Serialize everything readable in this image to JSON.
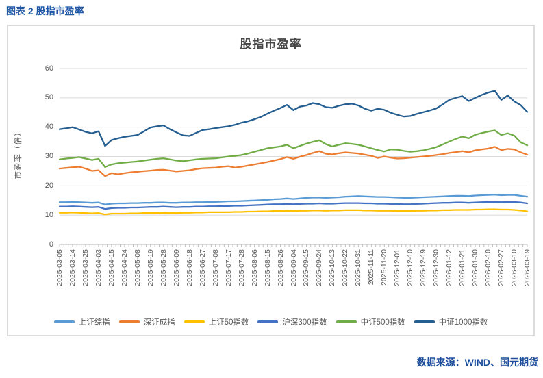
{
  "header": {
    "title": "图表 2 股指市盈率"
  },
  "source": {
    "text": "数据来源：WIND、国元期货"
  },
  "chart_data": {
    "type": "line",
    "title": "股指市盈率",
    "ylabel": "市盈率（倍）",
    "ylim": [
      0,
      60
    ],
    "ytick_step": 10,
    "grid": true,
    "legend_position": "bottom",
    "points_per_label": 2,
    "x_labels": [
      "2025-03-05",
      "2025-03-14",
      "2025-03-25",
      "2025-04-03",
      "2025-04-15",
      "2025-04-24",
      "2025-05-08",
      "2025-05-19",
      "2025-05-28",
      "2025-06-09",
      "2025-06-18",
      "2025-06-27",
      "2025-07-08",
      "2025-07-17",
      "2025-07-28",
      "2025-08-06",
      "2025-08-15",
      "2025-08-26",
      "2025-09-04",
      "2025-09-15",
      "2025-09-24",
      "2025-10-13",
      "2025-10-22",
      "2025-10-31",
      "2025-11-11",
      "2025-11-20",
      "2025-12-01",
      "2025-12-10",
      "2025-12-19",
      "2025-12-30",
      "2026-01-12",
      "2026-01-21",
      "2026-01-30",
      "2026-02-10",
      "2026-02-27",
      "2026-03-10",
      "2026-03-19"
    ],
    "series": [
      {
        "name": "上证综指",
        "color": "#5B9BD5",
        "values": [
          14.4,
          14.4,
          14.5,
          14.4,
          14.3,
          14.2,
          14.3,
          13.6,
          13.9,
          14.0,
          14.0,
          14.1,
          14.1,
          14.2,
          14.2,
          14.3,
          14.3,
          14.2,
          14.2,
          14.3,
          14.3,
          14.4,
          14.4,
          14.5,
          14.5,
          14.6,
          14.7,
          14.7,
          14.8,
          14.9,
          15.0,
          15.1,
          15.2,
          15.4,
          15.5,
          15.7,
          15.5,
          15.7,
          15.9,
          16.0,
          16.0,
          15.9,
          16.0,
          16.1,
          16.3,
          16.4,
          16.5,
          16.4,
          16.3,
          16.2,
          16.2,
          16.1,
          16.0,
          15.9,
          15.9,
          16.0,
          16.1,
          16.2,
          16.3,
          16.4,
          16.5,
          16.6,
          16.6,
          16.5,
          16.7,
          16.8,
          16.9,
          17.0,
          16.8,
          16.9,
          16.9,
          16.6,
          16.3
        ]
      },
      {
        "name": "深证成指",
        "color": "#ED7D31",
        "values": [
          25.9,
          26.1,
          26.3,
          26.5,
          25.9,
          25.1,
          25.3,
          23.3,
          24.3,
          23.9,
          24.3,
          24.6,
          24.8,
          25.0,
          25.2,
          25.4,
          25.5,
          25.2,
          24.9,
          25.1,
          25.3,
          25.7,
          26.0,
          26.1,
          26.2,
          26.5,
          26.7,
          26.2,
          26.5,
          26.9,
          27.3,
          27.7,
          28.1,
          28.6,
          29.1,
          29.8,
          29.2,
          29.9,
          30.5,
          31.2,
          31.8,
          30.9,
          30.7,
          31.1,
          31.4,
          31.2,
          31.0,
          30.6,
          30.2,
          29.5,
          30.0,
          29.6,
          29.3,
          29.4,
          29.6,
          29.8,
          30.0,
          30.2,
          30.5,
          30.8,
          31.2,
          31.5,
          31.8,
          31.4,
          32.1,
          32.4,
          32.7,
          33.3,
          32.2,
          32.6,
          32.4,
          31.4,
          30.6
        ]
      },
      {
        "name": "上证50指数",
        "color": "#FFC000",
        "values": [
          10.8,
          10.8,
          10.9,
          10.8,
          10.7,
          10.6,
          10.7,
          10.2,
          10.5,
          10.5,
          10.5,
          10.6,
          10.6,
          10.7,
          10.7,
          10.7,
          10.8,
          10.7,
          10.7,
          10.8,
          10.8,
          10.9,
          10.9,
          11.0,
          11.0,
          11.0,
          11.0,
          11.1,
          11.1,
          11.2,
          11.2,
          11.3,
          11.3,
          11.4,
          11.4,
          11.5,
          11.4,
          11.5,
          11.5,
          11.6,
          11.6,
          11.5,
          11.6,
          11.6,
          11.7,
          11.7,
          11.7,
          11.6,
          11.6,
          11.5,
          11.5,
          11.5,
          11.4,
          11.4,
          11.4,
          11.5,
          11.5,
          11.6,
          11.6,
          11.7,
          11.7,
          11.8,
          11.8,
          11.8,
          11.9,
          11.9,
          12.0,
          12.0,
          11.9,
          11.9,
          11.8,
          11.6,
          11.3
        ]
      },
      {
        "name": "沪深300指数",
        "color": "#4472C4",
        "values": [
          12.9,
          12.9,
          13.0,
          12.9,
          12.8,
          12.7,
          12.8,
          12.1,
          12.4,
          12.5,
          12.5,
          12.6,
          12.6,
          12.7,
          12.8,
          12.8,
          12.9,
          12.8,
          12.7,
          12.8,
          12.8,
          12.9,
          12.9,
          13.0,
          13.0,
          13.1,
          13.1,
          13.2,
          13.2,
          13.3,
          13.4,
          13.5,
          13.6,
          13.7,
          13.7,
          13.8,
          13.7,
          13.8,
          13.9,
          13.9,
          14.0,
          13.9,
          13.9,
          14.0,
          14.1,
          14.1,
          14.1,
          14.0,
          14.0,
          13.9,
          13.9,
          13.8,
          13.8,
          13.7,
          13.7,
          13.8,
          13.9,
          14.0,
          14.1,
          14.2,
          14.2,
          14.3,
          14.3,
          14.2,
          14.3,
          14.4,
          14.5,
          14.5,
          14.4,
          14.5,
          14.5,
          14.3,
          14.0
        ]
      },
      {
        "name": "中证500指数",
        "color": "#70AD47",
        "values": [
          29.0,
          29.3,
          29.5,
          29.8,
          29.3,
          28.8,
          29.2,
          26.4,
          27.3,
          27.7,
          27.9,
          28.1,
          28.3,
          28.6,
          28.9,
          29.2,
          29.4,
          29.0,
          28.6,
          28.4,
          28.7,
          29.0,
          29.2,
          29.3,
          29.4,
          29.7,
          30.0,
          30.2,
          30.5,
          31.0,
          31.6,
          32.2,
          32.8,
          33.1,
          33.4,
          34.0,
          32.8,
          33.6,
          34.4,
          35.0,
          35.5,
          34.2,
          33.4,
          34.0,
          34.5,
          34.3,
          34.0,
          33.4,
          32.8,
          32.2,
          31.7,
          32.4,
          32.3,
          31.9,
          31.6,
          31.8,
          32.1,
          32.6,
          33.2,
          34.1,
          35.1,
          36.0,
          36.8,
          36.2,
          37.4,
          38.0,
          38.5,
          38.9,
          37.3,
          37.9,
          37.1,
          34.8,
          33.8
        ]
      },
      {
        "name": "中证1000指数",
        "color": "#255E91",
        "values": [
          39.3,
          39.6,
          40.0,
          39.2,
          38.4,
          37.9,
          38.6,
          33.6,
          35.6,
          36.2,
          36.7,
          37.0,
          37.3,
          38.6,
          39.9,
          40.3,
          40.6,
          39.3,
          38.2,
          37.2,
          37.0,
          38.0,
          39.0,
          39.3,
          39.7,
          40.0,
          40.3,
          40.8,
          41.5,
          42.0,
          42.7,
          43.5,
          44.6,
          45.6,
          46.5,
          47.6,
          45.8,
          47.0,
          47.4,
          48.2,
          47.8,
          46.8,
          46.6,
          47.3,
          47.8,
          48.0,
          47.4,
          46.3,
          45.6,
          46.3,
          45.9,
          44.9,
          44.2,
          43.6,
          43.8,
          44.5,
          45.1,
          45.7,
          46.4,
          47.8,
          49.3,
          50.0,
          50.6,
          48.9,
          50.0,
          51.0,
          51.8,
          52.4,
          49.3,
          50.8,
          48.8,
          47.5,
          45.2
        ]
      }
    ],
    "colors": {
      "gridline": "#D9D9D9",
      "axis_text": "#595959",
      "caption_blue": "#2159A6",
      "source_blue": "#1C4C9C"
    }
  }
}
